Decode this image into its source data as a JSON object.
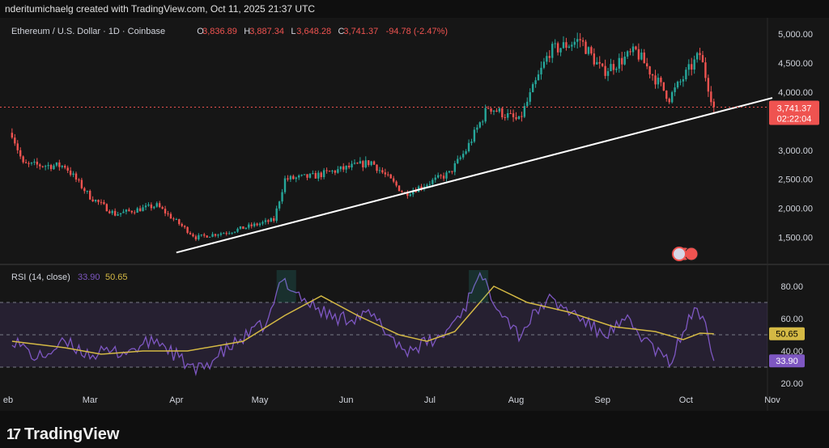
{
  "header": {
    "attribution": "nderitumichaelg created with TradingView.com, Oct 11, 2025 21:37 UTC"
  },
  "legend": {
    "symbol": "Ethereum / U.S. Dollar · 1D · Coinbase",
    "open_label": "O",
    "open": "3,836.89",
    "high_label": "H",
    "high": "3,887.34",
    "low_label": "L",
    "low": "3,648.28",
    "close_label": "C",
    "close": "3,741.37",
    "change": "-94.78 (-2.47%)"
  },
  "price_tag": {
    "price": "3,741.37",
    "countdown": "02:22:04"
  },
  "rsi_legend": {
    "label": "RSI (14, close)",
    "rsi_value": "33.90",
    "ma_value": "50.65"
  },
  "rsi_tags": {
    "ma": "50.65",
    "rsi": "33.90"
  },
  "brand": {
    "name": "TradingView",
    "mark": "17"
  },
  "colors": {
    "up": "#26a69a",
    "down": "#ef5350",
    "rsi": "#7e57c2",
    "rsi_ma": "#d4b944",
    "trendline": "#ffffff"
  },
  "chart_data": [
    {
      "type": "candlestick",
      "title": "Ethereum / U.S. Dollar · 1D · Coinbase",
      "y_ticks": [
        "1,500.00",
        "2,000.00",
        "2,500.00",
        "3,000.00",
        "4,000.00",
        "4,500.00",
        "5,000.00"
      ],
      "y_tick_values": [
        1500,
        2000,
        2500,
        3000,
        4000,
        4500,
        5000
      ],
      "ylim": [
        1050,
        5250
      ],
      "x_ticks": [
        "eb",
        "Mar",
        "Apr",
        "May",
        "Jun",
        "Jul",
        "Aug",
        "Sep",
        "Oct",
        "Nov"
      ],
      "anchors": [
        [
          "2025-02-01",
          3300
        ],
        [
          "2025-02-05",
          2750
        ],
        [
          "2025-02-20",
          2730
        ],
        [
          "2025-03-01",
          2200
        ],
        [
          "2025-03-10",
          1900
        ],
        [
          "2025-03-25",
          2050
        ],
        [
          "2025-04-08",
          1500
        ],
        [
          "2025-04-20",
          1600
        ],
        [
          "2025-05-06",
          1800
        ],
        [
          "2025-05-10",
          2500
        ],
        [
          "2025-05-20",
          2550
        ],
        [
          "2025-06-10",
          2800
        ],
        [
          "2025-06-22",
          2250
        ],
        [
          "2025-07-08",
          2600
        ],
        [
          "2025-07-14",
          3000
        ],
        [
          "2025-07-22",
          3750
        ],
        [
          "2025-08-02",
          3500
        ],
        [
          "2025-08-13",
          4700
        ],
        [
          "2025-08-24",
          4900
        ],
        [
          "2025-09-01",
          4350
        ],
        [
          "2025-09-13",
          4700
        ],
        [
          "2025-09-25",
          3900
        ],
        [
          "2025-10-06",
          4650
        ],
        [
          "2025-10-11",
          3741.37
        ]
      ],
      "last_ohlc": {
        "date": "2025-10-11",
        "open": 3836.89,
        "high": 3887.34,
        "low": 3648.28,
        "close": 3741.37
      },
      "trendline": [
        [
          "2025-04-01",
          1240
        ],
        [
          "2025-11-01",
          3900
        ]
      ]
    },
    {
      "type": "line",
      "title": "RSI (14, close)",
      "y_ticks": [
        "20.00",
        "40.00",
        "60.00",
        "80.00"
      ],
      "y_tick_values": [
        20,
        40,
        60,
        80
      ],
      "ylim": [
        17,
        93
      ],
      "bands": [
        30,
        50,
        70
      ],
      "series": [
        {
          "name": "RSI",
          "points": [
            [
              "2025-02-01",
              48
            ],
            [
              "2025-02-10",
              35
            ],
            [
              "2025-02-20",
              45
            ],
            [
              "2025-03-01",
              38
            ],
            [
              "2025-03-15",
              40
            ],
            [
              "2025-03-25",
              47
            ],
            [
              "2025-04-08",
              27
            ],
            [
              "2025-04-20",
              42
            ],
            [
              "2025-05-04",
              58
            ],
            [
              "2025-05-09",
              85
            ],
            [
              "2025-05-18",
              70
            ],
            [
              "2025-05-28",
              60
            ],
            [
              "2025-06-10",
              62
            ],
            [
              "2025-06-22",
              40
            ],
            [
              "2025-07-05",
              48
            ],
            [
              "2025-07-14",
              68
            ],
            [
              "2025-07-18",
              88
            ],
            [
              "2025-07-25",
              70
            ],
            [
              "2025-08-02",
              50
            ],
            [
              "2025-08-12",
              72
            ],
            [
              "2025-08-22",
              63
            ],
            [
              "2025-09-01",
              50
            ],
            [
              "2025-09-10",
              58
            ],
            [
              "2025-09-25",
              32
            ],
            [
              "2025-10-03",
              63
            ],
            [
              "2025-10-08",
              62
            ],
            [
              "2025-10-11",
              33.9
            ]
          ]
        },
        {
          "name": "RSI MA",
          "points": [
            [
              "2025-02-01",
              46
            ],
            [
              "2025-02-20",
              42
            ],
            [
              "2025-03-05",
              38
            ],
            [
              "2025-03-20",
              40
            ],
            [
              "2025-04-05",
              40
            ],
            [
              "2025-04-25",
              46
            ],
            [
              "2025-05-10",
              62
            ],
            [
              "2025-05-23",
              74
            ],
            [
              "2025-06-05",
              62
            ],
            [
              "2025-06-20",
              50
            ],
            [
              "2025-06-30",
              46
            ],
            [
              "2025-07-10",
              52
            ],
            [
              "2025-07-24",
              80
            ],
            [
              "2025-08-05",
              70
            ],
            [
              "2025-08-20",
              64
            ],
            [
              "2025-09-05",
              55
            ],
            [
              "2025-09-20",
              52
            ],
            [
              "2025-09-30",
              47
            ],
            [
              "2025-10-06",
              51
            ],
            [
              "2025-10-11",
              50.65
            ]
          ]
        }
      ]
    }
  ]
}
